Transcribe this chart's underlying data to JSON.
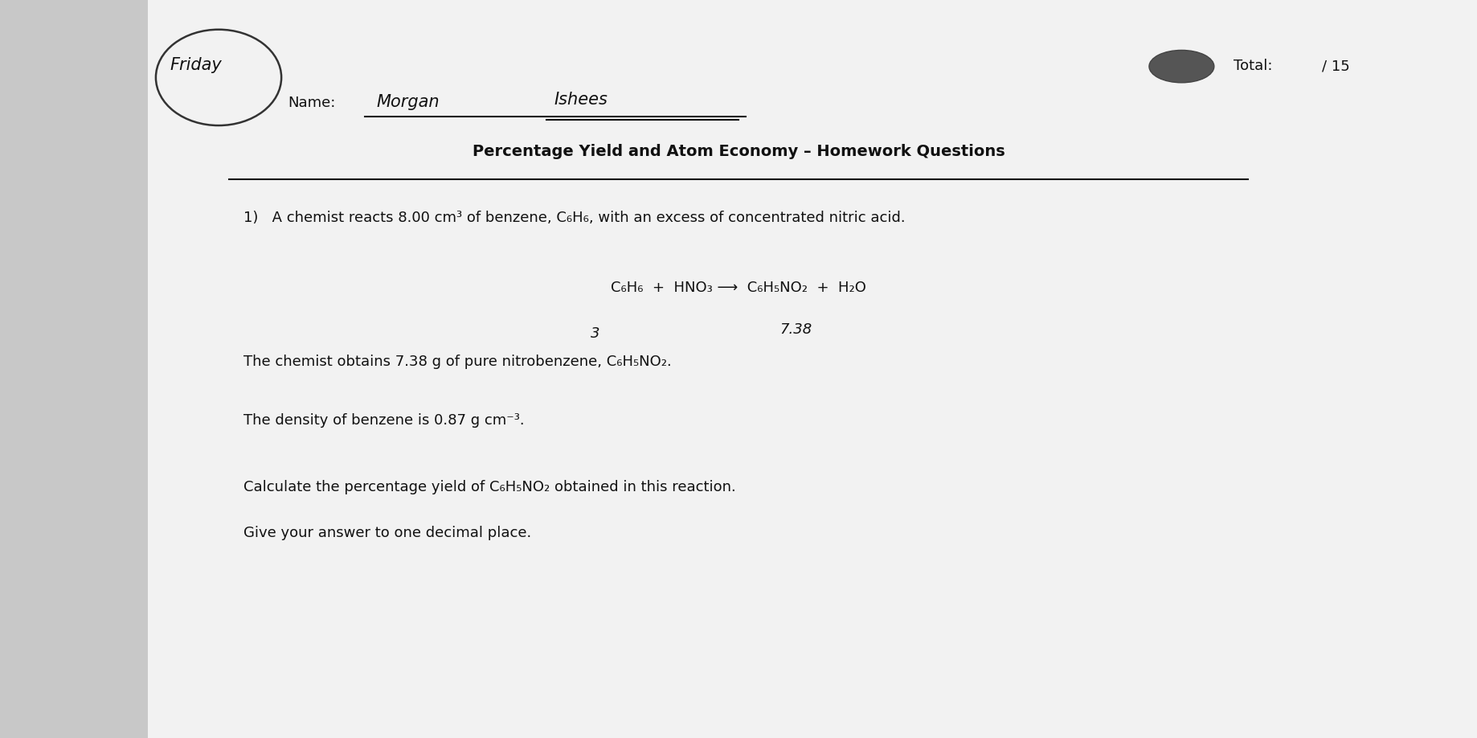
{
  "bg_color": "#c8c8c8",
  "paper_color": "#f2f2f2",
  "title": "Percentage Yield and Atom Economy – Homework Questions",
  "name_label": "Name:",
  "name_written": "Morgan",
  "name_written2": "Ishees",
  "total_label": "Total:",
  "total_value": "/ 15",
  "friday_text": "Friday",
  "q1_intro": "1)   A chemist reacts 8.00 cm³ of benzene, C₆H₆, with an excess of concentrated nitric acid.",
  "equation": "C₆H₆  +  HNO₃ ⟶  C₆H₅NO₂  +  H₂O",
  "annotation_3": "3",
  "annotation_738": "7.38",
  "sentence2": "The chemist obtains 7.38 g of pure nitrobenzene, C₆H₅NO₂.",
  "sentence3": "The density of benzene is 0.87 g cm⁻³.",
  "sentence4a": "Calculate the percentage yield of C₆H₅NO₂ obtained in this reaction.",
  "sentence4b": "Give your answer to one decimal place.",
  "text_color": "#111111",
  "title_fontsize": 14,
  "body_fontsize": 13,
  "eq_fontsize": 13,
  "handwrite_fontsize": 15,
  "small_handwrite_fontsize": 13
}
